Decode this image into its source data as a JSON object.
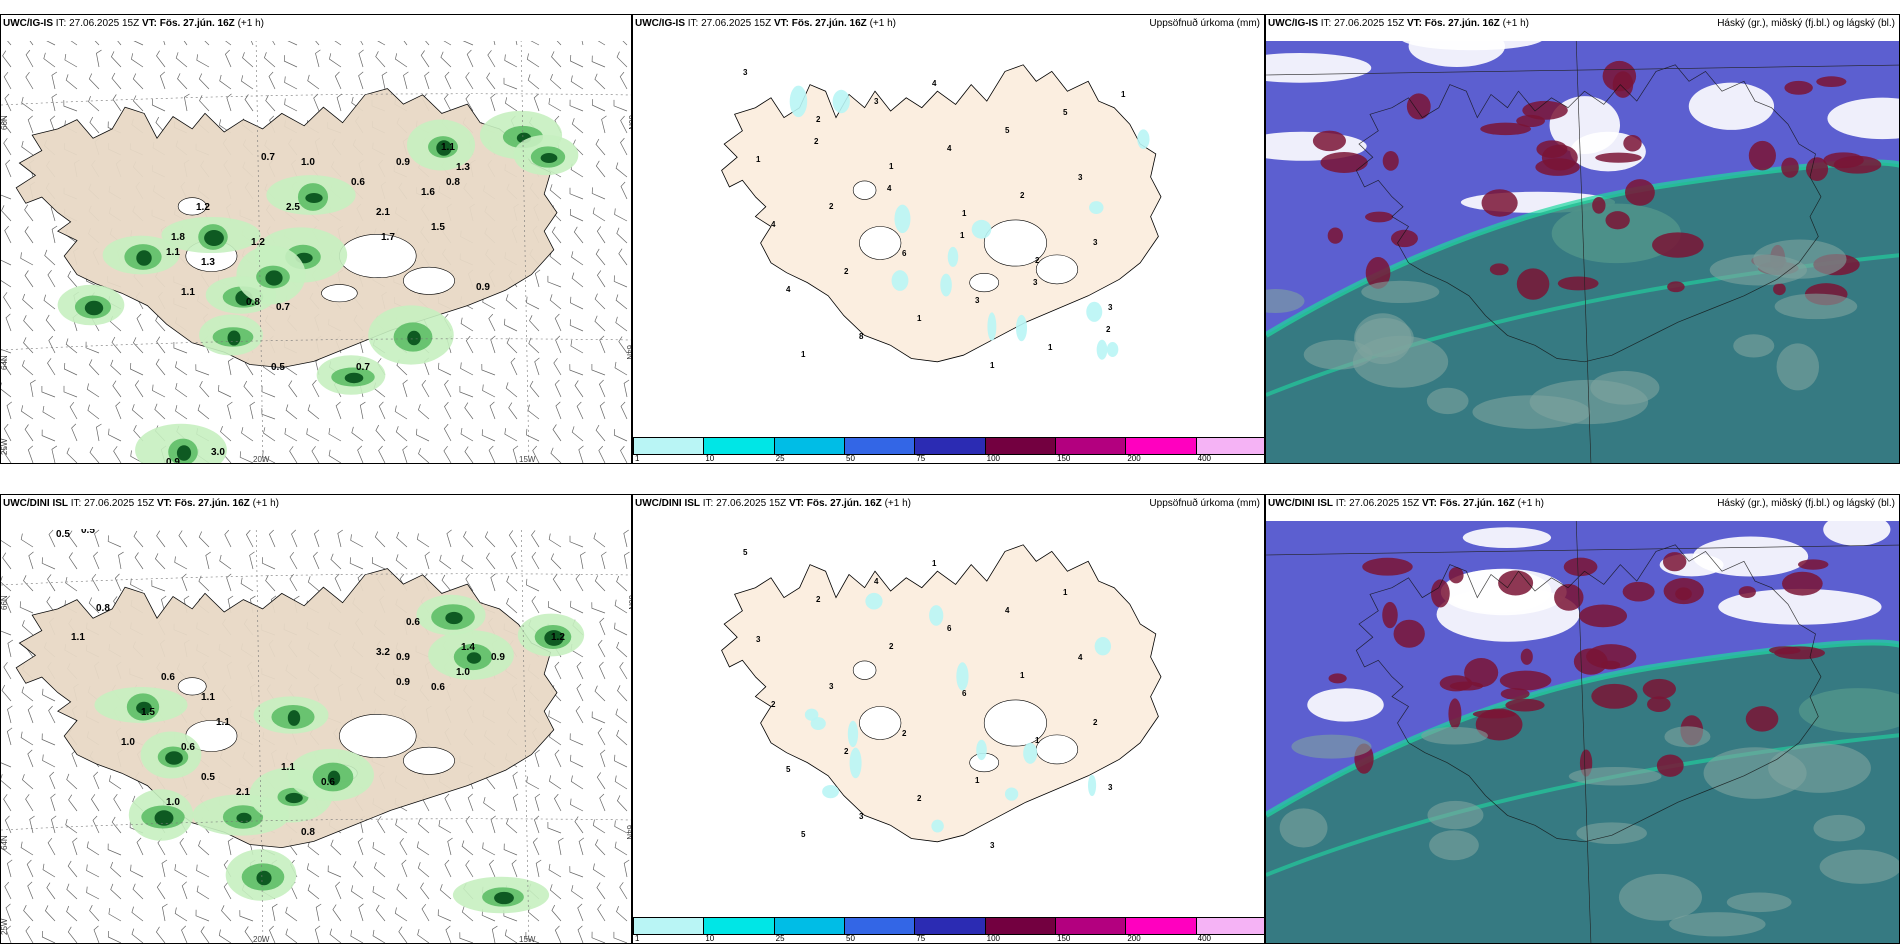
{
  "rows": [
    {
      "model": "UWC/IG-IS",
      "it_label": "IT:",
      "it": "27.06.2025 15Z",
      "vt_label": "VT:",
      "vt": "Fös. 27.jún. 16Z",
      "lead": "(+1 h)",
      "wind_values": [
        "0.7",
        "0.9",
        "1.0",
        "0.6",
        "2.1",
        "1.7",
        "2.5",
        "1.1",
        "1.3",
        "0.8",
        "0.7",
        "1.2",
        "1.8",
        "1.6",
        "1.5",
        "0.9",
        "1.1",
        "0.5",
        "0.7",
        "1.3",
        "0.8",
        "1.2",
        "1.1",
        "3.0",
        "0.9"
      ],
      "precip_values": [
        "3",
        "2",
        "1",
        "1",
        "2",
        "3",
        "1",
        "3",
        "4",
        "2",
        "3",
        "4",
        "8",
        "4",
        "5",
        "3",
        "4",
        "2",
        "1",
        "1",
        "5",
        "1",
        "2",
        "6",
        "3",
        "1",
        "1",
        "2",
        "4",
        "1",
        "3",
        "2"
      ]
    },
    {
      "model": "UWC/DINI ISL",
      "it_label": "IT:",
      "it": "27.06.2025 15Z",
      "vt_label": "VT:",
      "vt": "Fös. 27.jún. 16Z",
      "lead": "(+1 h)",
      "lead_wrapped": "h)",
      "wind_values": [
        "0.5",
        "0.5",
        "0.8",
        "1.1",
        "0.6",
        "1.1",
        "1.1",
        "0.6",
        "0.5",
        "1.0",
        "1.5",
        "1.1",
        "0.9",
        "3.2",
        "0.9",
        "0.6",
        "1.0",
        "0.9",
        "1.4",
        "0.6",
        "1.2",
        "2.1",
        "0.8",
        "0.6",
        "1.0"
      ],
      "precip_values": [
        "5",
        "2",
        "2",
        "6",
        "1",
        "3",
        "5",
        "4",
        "6",
        "1",
        "2",
        "5",
        "3",
        "1",
        "4",
        "4",
        "2",
        "2",
        "2",
        "3",
        "1",
        "3",
        "3",
        "2",
        "1"
      ]
    }
  ],
  "precip_title": "Uppsöfnuð úrkoma (mm)",
  "cloud_title": "Háský (gr.), miðský (fj.bl.) og lágský (bl.)",
  "grid_labels": {
    "lat66": "66N",
    "lat64": "64N",
    "lon25": "25W",
    "lon20": "20W",
    "lon15": "15W"
  },
  "colorbar": {
    "ticks": [
      "1",
      "10",
      "25",
      "50",
      "75",
      "100",
      "150",
      "200",
      "400"
    ],
    "colors": [
      "#b9f5f5",
      "#00e6e6",
      "#00bde6",
      "#3366e6",
      "#2b2bb3",
      "#730040",
      "#b3007f",
      "#ff00bf",
      "#f5b3f5"
    ]
  },
  "colors": {
    "land": "#e8d9c6",
    "land_light": "#fbeee0",
    "sea": "#ffffff",
    "precip_green_light": "#c7efc0",
    "precip_green": "#63c06b",
    "precip_green_dark": "#0e5a22",
    "cloud_high": "#9aa6ba",
    "cloud_mid": "#2f7f74",
    "cloud_low": "#6a3fb0",
    "cloud_maroon": "#7a1435",
    "cloud_sea": "#5c5fd0"
  }
}
